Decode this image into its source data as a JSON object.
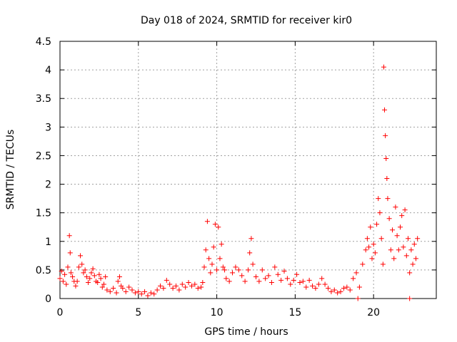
{
  "chart_data": {
    "type": "scatter",
    "title": "Day 018 of 2024, SRMTID for receiver kir0",
    "xlabel": "GPS time / hours",
    "ylabel": "SRMTID / TECUs",
    "xlim": [
      0,
      24
    ],
    "ylim": [
      0,
      4.5
    ],
    "xticks": [
      0,
      5,
      10,
      15,
      20
    ],
    "xtick_labels": [
      "0",
      "5",
      "10",
      "15",
      "20"
    ],
    "yticks": [
      0,
      0.5,
      1,
      1.5,
      2,
      2.5,
      3,
      3.5,
      4,
      4.5
    ],
    "ytick_labels": [
      "0",
      "0.5",
      "1",
      "1.5",
      "2",
      "2.5",
      "3",
      "3.5",
      "4",
      "4.5"
    ],
    "grid": true,
    "marker": "+",
    "marker_color": "#ff0000",
    "series": [
      {
        "name": "kir0",
        "points": [
          [
            0.0,
            0.35
          ],
          [
            0.1,
            0.48
          ],
          [
            0.2,
            0.3
          ],
          [
            0.3,
            0.42
          ],
          [
            0.4,
            0.25
          ],
          [
            0.5,
            0.55
          ],
          [
            0.6,
            1.1
          ],
          [
            0.65,
            0.8
          ],
          [
            0.7,
            0.45
          ],
          [
            0.8,
            0.38
          ],
          [
            0.9,
            0.3
          ],
          [
            1.0,
            0.22
          ],
          [
            1.1,
            0.3
          ],
          [
            1.2,
            0.55
          ],
          [
            1.3,
            0.75
          ],
          [
            1.4,
            0.6
          ],
          [
            1.5,
            0.45
          ],
          [
            1.6,
            0.5
          ],
          [
            1.7,
            0.38
          ],
          [
            1.8,
            0.28
          ],
          [
            1.9,
            0.35
          ],
          [
            2.0,
            0.45
          ],
          [
            2.1,
            0.52
          ],
          [
            2.2,
            0.4
          ],
          [
            2.3,
            0.3
          ],
          [
            2.4,
            0.28
          ],
          [
            2.5,
            0.42
          ],
          [
            2.6,
            0.35
          ],
          [
            2.7,
            0.2
          ],
          [
            2.8,
            0.25
          ],
          [
            2.9,
            0.38
          ],
          [
            3.0,
            0.15
          ],
          [
            3.2,
            0.12
          ],
          [
            3.4,
            0.18
          ],
          [
            3.6,
            0.1
          ],
          [
            3.7,
            0.3
          ],
          [
            3.8,
            0.38
          ],
          [
            3.9,
            0.22
          ],
          [
            4.0,
            0.18
          ],
          [
            4.2,
            0.12
          ],
          [
            4.4,
            0.2
          ],
          [
            4.6,
            0.15
          ],
          [
            4.8,
            0.1
          ],
          [
            5.0,
            0.12
          ],
          [
            5.2,
            0.08
          ],
          [
            5.4,
            0.12
          ],
          [
            5.6,
            0.05
          ],
          [
            5.8,
            0.1
          ],
          [
            6.0,
            0.08
          ],
          [
            6.2,
            0.15
          ],
          [
            6.4,
            0.22
          ],
          [
            6.6,
            0.18
          ],
          [
            6.8,
            0.32
          ],
          [
            7.0,
            0.25
          ],
          [
            7.2,
            0.18
          ],
          [
            7.4,
            0.22
          ],
          [
            7.6,
            0.15
          ],
          [
            7.8,
            0.25
          ],
          [
            8.0,
            0.2
          ],
          [
            8.2,
            0.28
          ],
          [
            8.4,
            0.22
          ],
          [
            8.6,
            0.25
          ],
          [
            8.8,
            0.18
          ],
          [
            9.0,
            0.2
          ],
          [
            9.1,
            0.28
          ],
          [
            9.2,
            0.55
          ],
          [
            9.3,
            0.85
          ],
          [
            9.4,
            1.35
          ],
          [
            9.5,
            0.7
          ],
          [
            9.6,
            0.45
          ],
          [
            9.7,
            0.6
          ],
          [
            9.8,
            0.9
          ],
          [
            9.9,
            1.3
          ],
          [
            10.0,
            0.5
          ],
          [
            10.1,
            1.25
          ],
          [
            10.2,
            0.7
          ],
          [
            10.3,
            0.95
          ],
          [
            10.4,
            0.55
          ],
          [
            10.5,
            0.5
          ],
          [
            10.6,
            0.35
          ],
          [
            10.8,
            0.3
          ],
          [
            11.0,
            0.45
          ],
          [
            11.2,
            0.55
          ],
          [
            11.4,
            0.5
          ],
          [
            11.6,
            0.4
          ],
          [
            11.8,
            0.3
          ],
          [
            12.0,
            0.5
          ],
          [
            12.1,
            0.8
          ],
          [
            12.2,
            1.05
          ],
          [
            12.3,
            0.6
          ],
          [
            12.5,
            0.38
          ],
          [
            12.7,
            0.3
          ],
          [
            12.9,
            0.5
          ],
          [
            13.1,
            0.35
          ],
          [
            13.3,
            0.4
          ],
          [
            13.5,
            0.28
          ],
          [
            13.7,
            0.55
          ],
          [
            13.9,
            0.42
          ],
          [
            14.1,
            0.32
          ],
          [
            14.3,
            0.48
          ],
          [
            14.5,
            0.35
          ],
          [
            14.7,
            0.25
          ],
          [
            14.9,
            0.32
          ],
          [
            15.1,
            0.42
          ],
          [
            15.3,
            0.28
          ],
          [
            15.5,
            0.3
          ],
          [
            15.7,
            0.2
          ],
          [
            15.9,
            0.32
          ],
          [
            16.1,
            0.22
          ],
          [
            16.3,
            0.18
          ],
          [
            16.5,
            0.25
          ],
          [
            16.7,
            0.35
          ],
          [
            16.9,
            0.25
          ],
          [
            17.1,
            0.18
          ],
          [
            17.3,
            0.12
          ],
          [
            17.5,
            0.15
          ],
          [
            17.7,
            0.1
          ],
          [
            17.9,
            0.12
          ],
          [
            18.1,
            0.18
          ],
          [
            18.3,
            0.2
          ],
          [
            18.5,
            0.15
          ],
          [
            18.7,
            0.35
          ],
          [
            18.9,
            0.45
          ],
          [
            19.1,
            0.2
          ],
          [
            19.3,
            0.6
          ],
          [
            19.5,
            0.85
          ],
          [
            19.6,
            1.05
          ],
          [
            19.7,
            0.9
          ],
          [
            19.8,
            1.25
          ],
          [
            19.9,
            0.7
          ],
          [
            20.0,
            0.95
          ],
          [
            20.1,
            0.8
          ],
          [
            20.2,
            1.3
          ],
          [
            20.3,
            1.75
          ],
          [
            20.4,
            1.5
          ],
          [
            20.5,
            1.05
          ],
          [
            20.6,
            0.6
          ],
          [
            20.65,
            4.05
          ],
          [
            20.7,
            3.3
          ],
          [
            20.75,
            2.85
          ],
          [
            20.8,
            2.45
          ],
          [
            20.85,
            2.1
          ],
          [
            20.9,
            1.75
          ],
          [
            21.0,
            1.4
          ],
          [
            21.1,
            0.85
          ],
          [
            21.2,
            1.2
          ],
          [
            21.3,
            0.7
          ],
          [
            21.4,
            1.6
          ],
          [
            21.5,
            1.1
          ],
          [
            21.6,
            0.85
          ],
          [
            21.7,
            1.25
          ],
          [
            21.8,
            1.45
          ],
          [
            21.9,
            0.9
          ],
          [
            22.0,
            1.55
          ],
          [
            22.1,
            0.75
          ],
          [
            22.2,
            1.05
          ],
          [
            22.3,
            0.45
          ],
          [
            22.4,
            0.85
          ],
          [
            22.5,
            0.6
          ],
          [
            22.6,
            0.95
          ],
          [
            22.7,
            0.7
          ],
          [
            22.8,
            1.05
          ],
          [
            19.0,
            0.0
          ],
          [
            22.3,
            0.0
          ]
        ]
      }
    ]
  }
}
